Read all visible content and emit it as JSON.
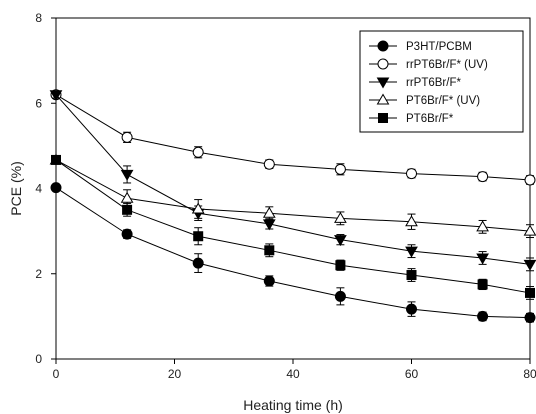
{
  "chart_data": {
    "type": "line",
    "title": "",
    "xlabel": "Heating time (h)",
    "ylabel": "PCE (%)",
    "xlim": [
      0,
      80
    ],
    "ylim": [
      0,
      8
    ],
    "xticks": [
      0,
      20,
      40,
      60,
      80
    ],
    "yticks": [
      0,
      2,
      4,
      6,
      8
    ],
    "grid": false,
    "legend_position": "top-right",
    "series": [
      {
        "name": "P3HT/PCBM",
        "marker": "circle-filled",
        "x": [
          0,
          12,
          24,
          36,
          48,
          60,
          72,
          80
        ],
        "y": [
          4.02,
          2.93,
          2.25,
          1.83,
          1.47,
          1.17,
          1.0,
          0.97
        ],
        "err": [
          0.06,
          0.1,
          0.22,
          0.12,
          0.2,
          0.17,
          0.1,
          0.1
        ]
      },
      {
        "name": "rrPT6Br/F* (UV)",
        "marker": "circle-open",
        "x": [
          0,
          12,
          24,
          36,
          48,
          60,
          72,
          80
        ],
        "y": [
          6.2,
          5.2,
          4.85,
          4.57,
          4.45,
          4.35,
          4.28,
          4.2
        ],
        "err": [
          0.08,
          0.12,
          0.13,
          0.1,
          0.13,
          0.1,
          0.1,
          0.1
        ]
      },
      {
        "name": "rrPT6Br/F*",
        "marker": "triangle-down-filled",
        "x": [
          0,
          12,
          24,
          36,
          48,
          60,
          72,
          80
        ],
        "y": [
          6.2,
          4.33,
          3.42,
          3.17,
          2.8,
          2.53,
          2.37,
          2.22
        ],
        "err": [
          0.08,
          0.2,
          0.17,
          0.12,
          0.12,
          0.15,
          0.15,
          0.15
        ]
      },
      {
        "name": "PT6Br/F* (UV)",
        "marker": "triangle-up-open",
        "x": [
          0,
          12,
          24,
          36,
          48,
          60,
          72,
          80
        ],
        "y": [
          4.67,
          3.77,
          3.52,
          3.42,
          3.3,
          3.22,
          3.1,
          3.0
        ],
        "err": [
          0.08,
          0.2,
          0.22,
          0.15,
          0.15,
          0.18,
          0.15,
          0.15
        ]
      },
      {
        "name": "PT6Br/F*",
        "marker": "square-filled",
        "x": [
          0,
          12,
          24,
          36,
          48,
          60,
          72,
          80
        ],
        "y": [
          4.67,
          3.5,
          2.88,
          2.55,
          2.2,
          1.97,
          1.75,
          1.55
        ],
        "err": [
          0.06,
          0.15,
          0.2,
          0.15,
          0.12,
          0.15,
          0.12,
          0.15
        ]
      }
    ]
  }
}
